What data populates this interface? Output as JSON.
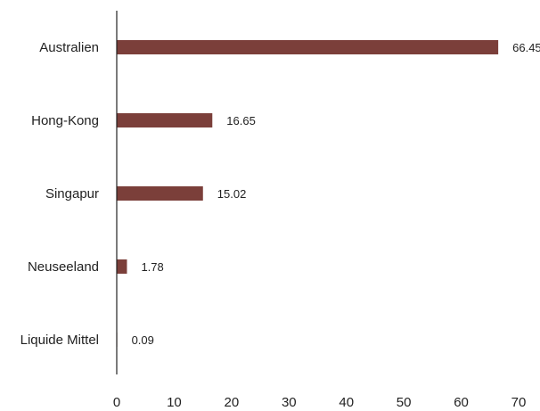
{
  "chart_data": {
    "type": "bar",
    "orientation": "horizontal",
    "categories": [
      "Australien",
      "Hong-Kong",
      "Singapur",
      "Neuseeland",
      "Liquide Mittel"
    ],
    "values": [
      66.45,
      16.65,
      15.02,
      1.78,
      0.09
    ],
    "value_labels": [
      "66.45",
      "16.65",
      "15.02",
      "1.78",
      "0.09"
    ],
    "xlim": [
      0,
      70
    ],
    "x_ticks": [
      0,
      10,
      20,
      30,
      40,
      50,
      60,
      70
    ],
    "grid": false,
    "bar_color": "#7b3f3a",
    "axis_color": "#222222",
    "text_color": "#222222"
  }
}
